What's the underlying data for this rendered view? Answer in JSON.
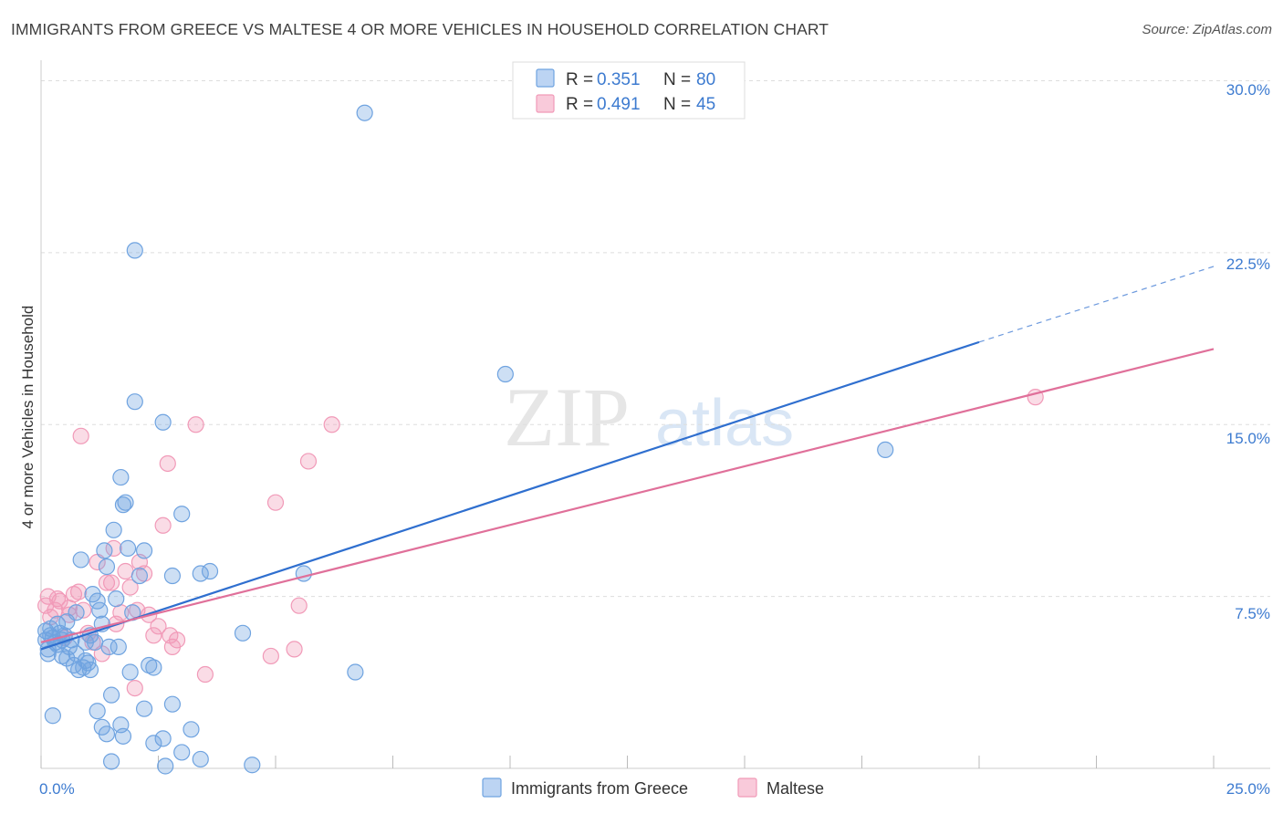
{
  "title": "IMMIGRANTS FROM GREECE VS MALTESE 4 OR MORE VEHICLES IN HOUSEHOLD CORRELATION CHART",
  "source": "Source: ZipAtlas.com",
  "watermark": {
    "zip": "ZIP",
    "atlas": "atlas"
  },
  "colors": {
    "blue": "#6fa3e0",
    "blue_line": "#2f6fcf",
    "pink": "#f19ab8",
    "pink_line": "#e0709a",
    "accent_text": "#3d7bd0",
    "grid": "#dddddd"
  },
  "legend": {
    "items": [
      {
        "r_label": "R = ",
        "r_value": "0.351",
        "n_label": "N = ",
        "n_value": "80"
      },
      {
        "r_label": "R = ",
        "r_value": "0.491",
        "n_label": "N = ",
        "n_value": "45"
      }
    ]
  },
  "bottom_legend": {
    "series1": "Immigrants from Greece",
    "series2": "Maltese"
  },
  "chart_data": {
    "type": "scatter",
    "title": "IMMIGRANTS FROM GREECE VS MALTESE 4 OR MORE VEHICLES IN HOUSEHOLD CORRELATION CHART",
    "xlabel": "",
    "ylabel": "4 or more Vehicles in Household",
    "xlim": [
      0,
      25
    ],
    "ylim": [
      0,
      30.5
    ],
    "x_tick_labels": [
      "0.0%",
      "25.0%"
    ],
    "y_ticks": [
      7.5,
      15.0,
      22.5,
      30.0
    ],
    "y_tick_labels": [
      "7.5%",
      "15.0%",
      "22.5%",
      "30.0%"
    ],
    "grid": true,
    "series": [
      {
        "name": "Immigrants from Greece",
        "color": "#6fa3e0",
        "trend": {
          "x0": 0,
          "y0": 5.2,
          "x1": 20,
          "y1": 18.6,
          "dash_to_x": 25,
          "dash_to_y": 21.9
        },
        "points": [
          [
            0.1,
            6.0
          ],
          [
            0.1,
            5.6
          ],
          [
            0.15,
            5.2
          ],
          [
            0.2,
            6.1
          ],
          [
            0.25,
            5.7
          ],
          [
            0.3,
            5.5
          ],
          [
            0.35,
            6.3
          ],
          [
            0.4,
            5.9
          ],
          [
            0.45,
            5.6
          ],
          [
            0.5,
            5.8
          ],
          [
            0.55,
            4.8
          ],
          [
            0.6,
            5.3
          ],
          [
            0.65,
            5.6
          ],
          [
            0.7,
            4.5
          ],
          [
            0.75,
            6.8
          ],
          [
            0.8,
            4.3
          ],
          [
            0.85,
            9.1
          ],
          [
            0.9,
            4.4
          ],
          [
            0.95,
            4.7
          ],
          [
            1.0,
            4.6
          ],
          [
            1.05,
            5.8
          ],
          [
            1.1,
            7.6
          ],
          [
            1.15,
            5.5
          ],
          [
            1.2,
            7.3
          ],
          [
            1.25,
            6.9
          ],
          [
            1.3,
            6.3
          ],
          [
            1.35,
            9.5
          ],
          [
            1.4,
            8.8
          ],
          [
            1.45,
            5.3
          ],
          [
            1.5,
            3.2
          ],
          [
            1.55,
            10.4
          ],
          [
            1.6,
            7.4
          ],
          [
            1.65,
            5.3
          ],
          [
            1.7,
            12.7
          ],
          [
            1.75,
            11.5
          ],
          [
            1.8,
            11.6
          ],
          [
            1.85,
            9.6
          ],
          [
            1.9,
            4.2
          ],
          [
            1.95,
            6.8
          ],
          [
            2.0,
            16.0
          ],
          [
            2.1,
            8.4
          ],
          [
            2.2,
            9.5
          ],
          [
            2.3,
            4.5
          ],
          [
            2.4,
            4.4
          ],
          [
            2.6,
            15.1
          ],
          [
            2.8,
            8.4
          ],
          [
            3.0,
            11.1
          ],
          [
            3.4,
            8.5
          ],
          [
            3.6,
            8.6
          ],
          [
            4.3,
            5.9
          ],
          [
            5.6,
            8.5
          ],
          [
            6.7,
            4.2
          ],
          [
            2.0,
            22.6
          ],
          [
            6.9,
            28.6
          ],
          [
            9.9,
            17.2
          ],
          [
            18.0,
            13.9
          ],
          [
            0.25,
            2.3
          ],
          [
            1.2,
            2.5
          ],
          [
            1.3,
            1.8
          ],
          [
            1.4,
            1.5
          ],
          [
            1.7,
            1.9
          ],
          [
            1.75,
            1.4
          ],
          [
            2.2,
            2.6
          ],
          [
            2.4,
            1.1
          ],
          [
            2.6,
            1.3
          ],
          [
            2.8,
            2.8
          ],
          [
            3.0,
            0.7
          ],
          [
            3.2,
            1.7
          ],
          [
            3.4,
            0.4
          ],
          [
            1.5,
            0.3
          ],
          [
            2.65,
            0.1
          ],
          [
            4.5,
            0.15
          ],
          [
            0.15,
            5.0
          ],
          [
            0.2,
            5.8
          ],
          [
            0.35,
            5.4
          ],
          [
            0.55,
            6.4
          ],
          [
            0.45,
            4.9
          ],
          [
            0.95,
            5.5
          ],
          [
            0.75,
            5.0
          ],
          [
            1.05,
            4.3
          ]
        ]
      },
      {
        "name": "Maltese",
        "color": "#f19ab8",
        "trend": {
          "x0": 0,
          "y0": 5.5,
          "x1": 25,
          "y1": 18.3
        },
        "points": [
          [
            0.1,
            7.1
          ],
          [
            0.15,
            7.5
          ],
          [
            0.2,
            6.6
          ],
          [
            0.3,
            6.9
          ],
          [
            0.4,
            7.3
          ],
          [
            0.5,
            5.7
          ],
          [
            0.6,
            7.0
          ],
          [
            0.7,
            7.6
          ],
          [
            0.8,
            7.7
          ],
          [
            0.85,
            14.5
          ],
          [
            0.9,
            6.9
          ],
          [
            1.0,
            5.9
          ],
          [
            1.1,
            5.5
          ],
          [
            1.2,
            9.0
          ],
          [
            1.3,
            5.0
          ],
          [
            1.4,
            8.1
          ],
          [
            1.5,
            8.1
          ],
          [
            1.55,
            9.6
          ],
          [
            1.6,
            6.3
          ],
          [
            1.7,
            6.8
          ],
          [
            1.8,
            8.6
          ],
          [
            1.9,
            7.9
          ],
          [
            2.0,
            3.5
          ],
          [
            2.05,
            6.9
          ],
          [
            2.1,
            9.0
          ],
          [
            2.2,
            8.5
          ],
          [
            2.3,
            6.7
          ],
          [
            2.4,
            5.8
          ],
          [
            2.5,
            6.2
          ],
          [
            2.6,
            10.6
          ],
          [
            2.7,
            13.3
          ],
          [
            2.75,
            5.8
          ],
          [
            2.8,
            5.3
          ],
          [
            2.9,
            5.6
          ],
          [
            3.3,
            15.0
          ],
          [
            3.5,
            4.1
          ],
          [
            4.9,
            4.9
          ],
          [
            5.0,
            11.6
          ],
          [
            5.4,
            5.2
          ],
          [
            5.5,
            7.1
          ],
          [
            5.7,
            13.4
          ],
          [
            6.2,
            15.0
          ],
          [
            21.2,
            16.2
          ],
          [
            0.35,
            7.4
          ],
          [
            0.6,
            6.7
          ]
        ]
      }
    ]
  }
}
